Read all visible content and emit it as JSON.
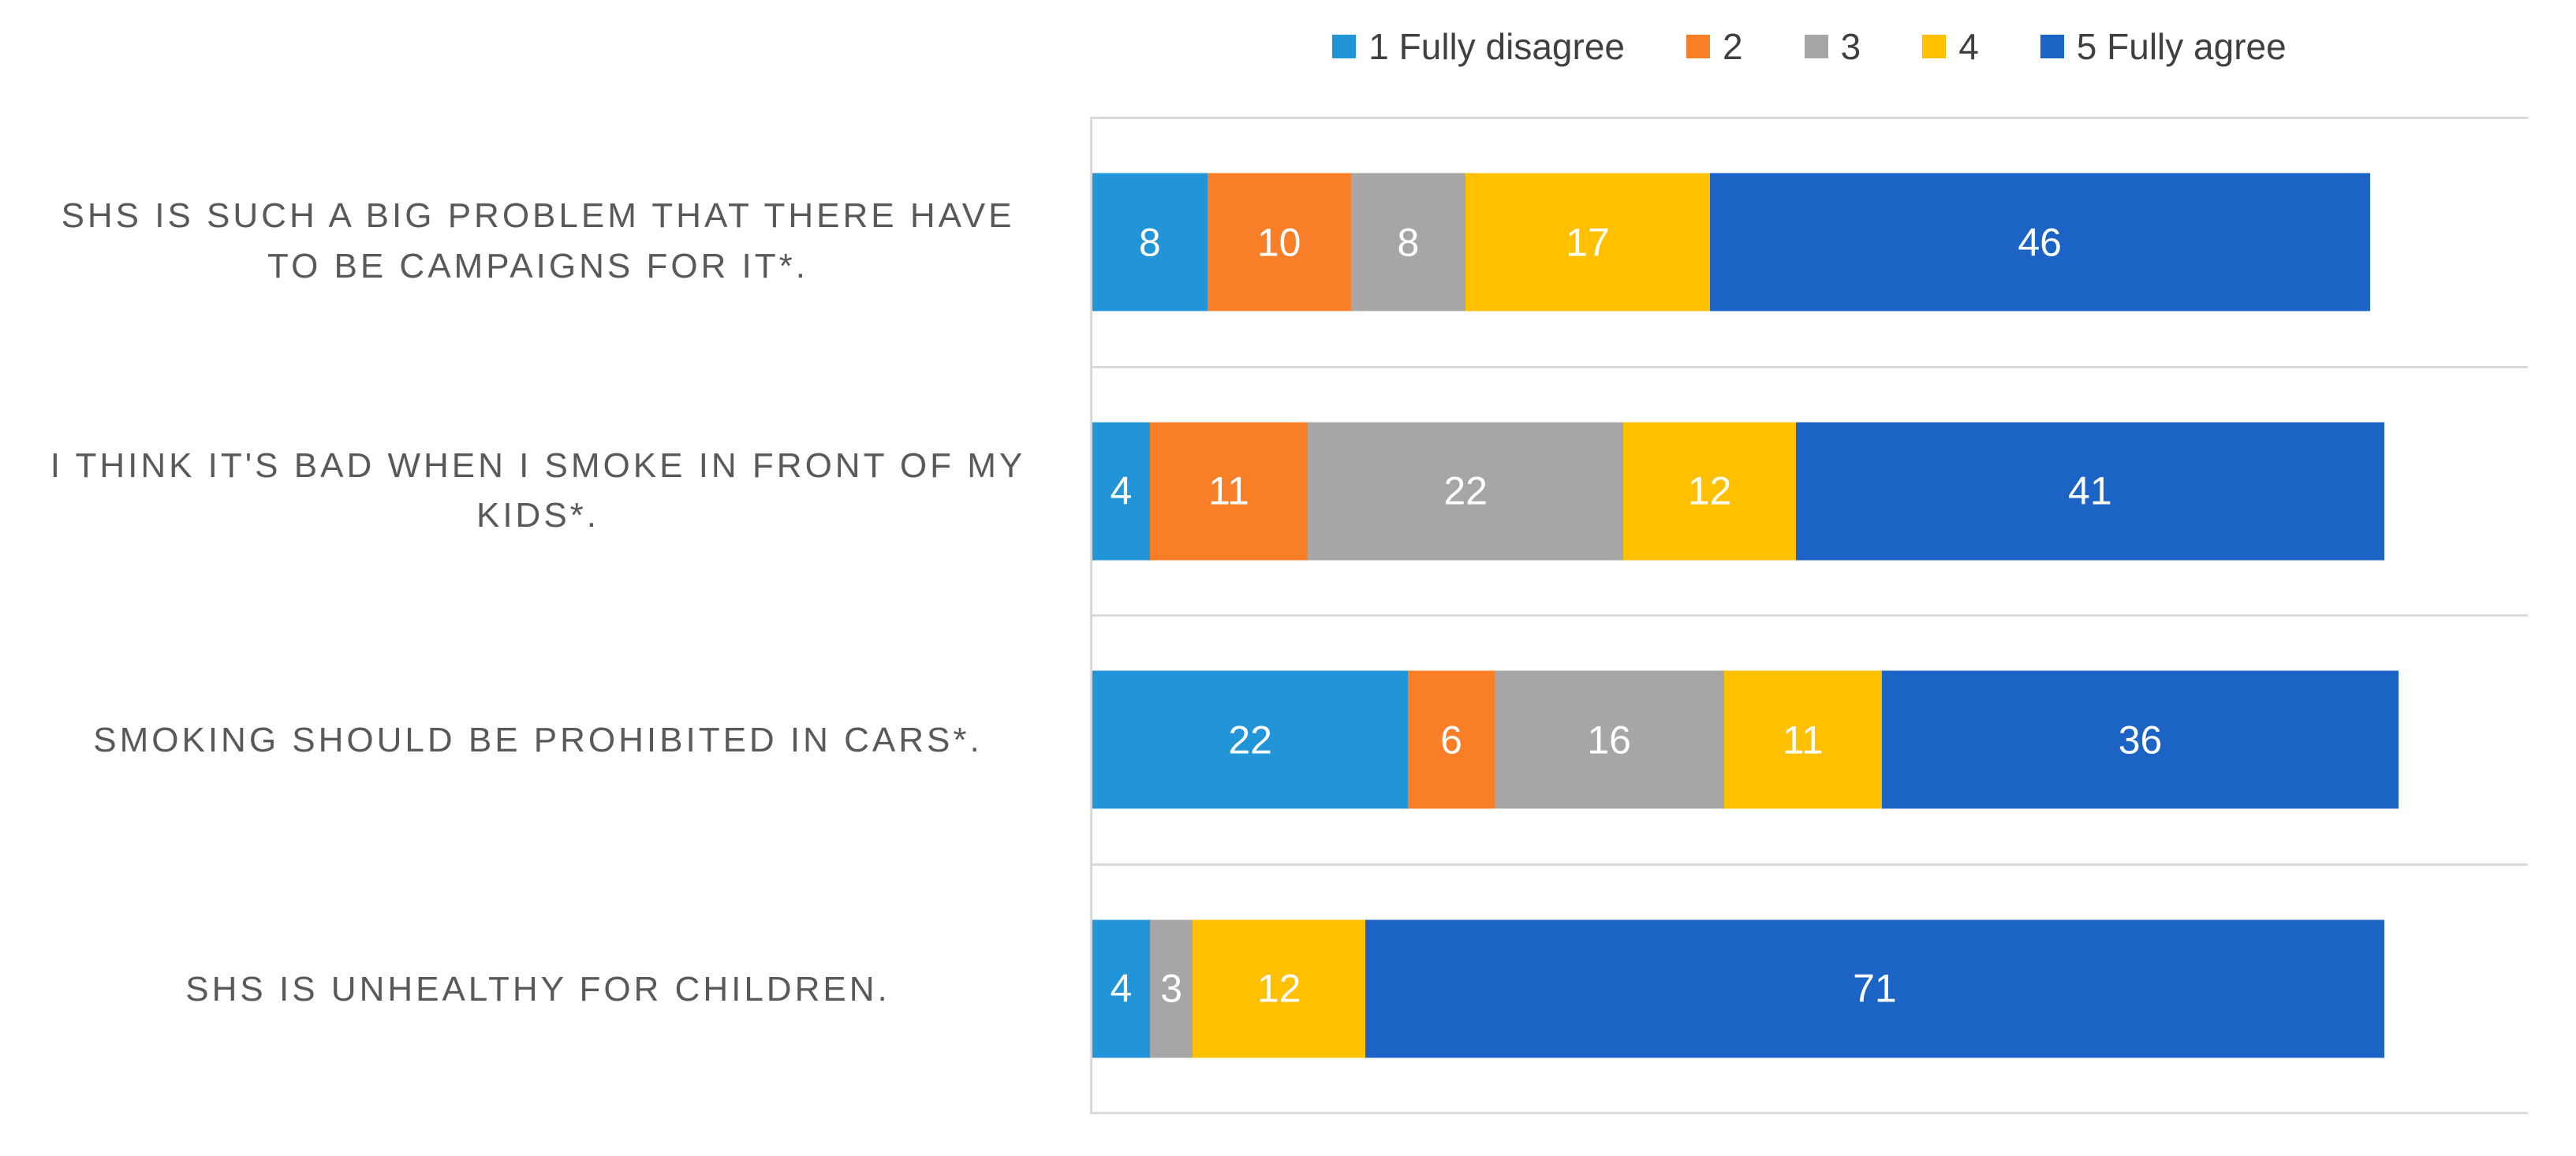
{
  "chart_data": {
    "type": "bar",
    "orientation": "horizontal",
    "stacked": true,
    "title": "",
    "xlabel": "",
    "ylabel": "",
    "xlim": [
      0,
      100
    ],
    "legend_position": "top-center",
    "grid": "horizontal category separator lines, light gray",
    "value_labels": "white numbers centered inside each segment",
    "axis_line_color": "#d9d9d9",
    "category_label_color": "#595959",
    "legend_text_color": "#404040",
    "categories": [
      "SHS IS SUCH A BIG PROBLEM THAT THERE HAVE TO BE CAMPAIGNS FOR IT*.",
      "I THINK IT'S BAD WHEN I SMOKE IN FRONT OF MY KIDS*.",
      "SMOKING SHOULD BE PROHIBITED IN CARS*.",
      "SHS IS UNHEALTHY FOR CHILDREN."
    ],
    "series": [
      {
        "name": "1 Fully disagree",
        "color": "#2295d8",
        "values": [
          8,
          4,
          22,
          4
        ]
      },
      {
        "name": "2",
        "color": "#f87e28",
        "values": [
          10,
          11,
          6,
          0
        ]
      },
      {
        "name": "3",
        "color": "#a6a6a6",
        "values": [
          8,
          22,
          16,
          3
        ]
      },
      {
        "name": "4",
        "color": "#ffc000",
        "values": [
          17,
          12,
          11,
          12
        ]
      },
      {
        "name": "5 Fully agree",
        "color": "#1b64c5",
        "values": [
          46,
          41,
          36,
          71
        ]
      }
    ]
  }
}
